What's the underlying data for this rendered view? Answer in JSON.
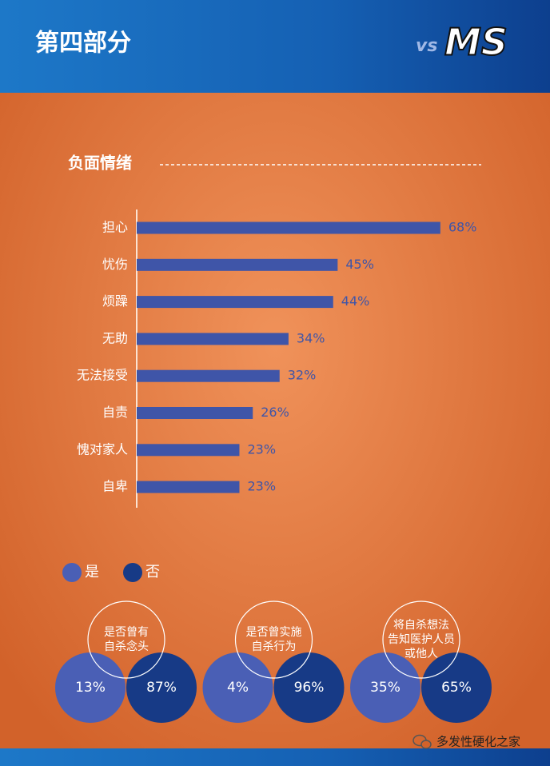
{
  "header": {
    "title": "第四部分",
    "logo_prefix": "vs",
    "logo": "MS"
  },
  "chart_data": [
    {
      "type": "bar",
      "orientation": "horizontal",
      "title": "负面情绪",
      "categories": [
        "担心",
        "忧伤",
        "烦躁",
        "无助",
        "无法接受",
        "自责",
        "愧对家人",
        "自卑"
      ],
      "values": [
        68,
        45,
        44,
        34,
        32,
        26,
        23,
        23
      ],
      "value_labels": [
        "68%",
        "45%",
        "44%",
        "34%",
        "32%",
        "26%",
        "23%",
        "23%"
      ],
      "color": "#3f55a8",
      "xlim": [
        0,
        70
      ]
    },
    {
      "type": "pair",
      "categories": [
        [
          "是否曾有",
          "自杀念头"
        ],
        [
          "是否曾实施",
          "自杀行为"
        ],
        [
          "将自杀想法",
          "告知医护人员",
          "或他人"
        ]
      ],
      "series": [
        {
          "name": "是",
          "color": "#4a5fb5",
          "values": [
            13,
            4,
            35
          ],
          "value_labels": [
            "13%",
            "4%",
            "35%"
          ]
        },
        {
          "name": "否",
          "color": "#173a86",
          "values": [
            87,
            96,
            65
          ],
          "value_labels": [
            "87%",
            "96%",
            "65%"
          ]
        }
      ]
    }
  ],
  "footer": {
    "text": "多发性硬化之家"
  }
}
